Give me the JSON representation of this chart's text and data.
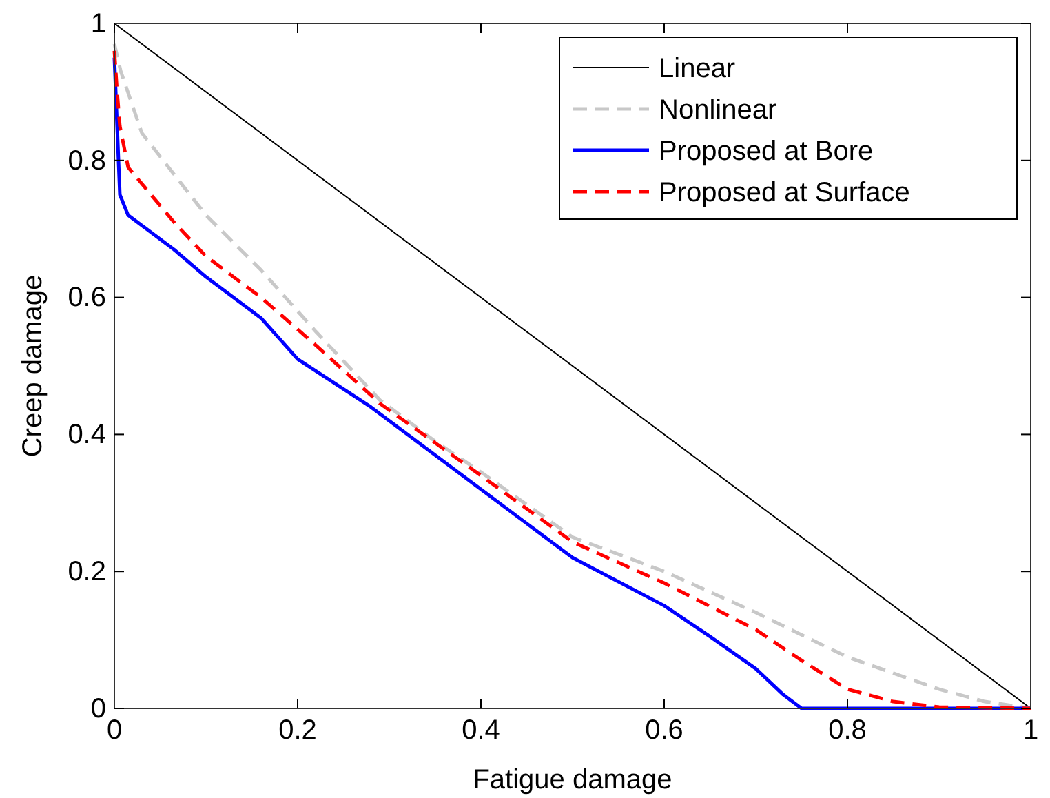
{
  "chart_data": {
    "type": "line",
    "xlabel": "Fatigue damage",
    "ylabel": "Creep damage",
    "xlim": [
      0,
      1
    ],
    "ylim": [
      0,
      1
    ],
    "xticks": [
      0,
      0.2,
      0.4,
      0.6,
      0.8,
      1
    ],
    "yticks": [
      0,
      0.2,
      0.4,
      0.6,
      0.8,
      1
    ],
    "grid": false,
    "legend": "top right",
    "marker": "none",
    "series": [
      {
        "name": "Linear",
        "color": "#000000",
        "line_style": "solid",
        "x": [
          0,
          1
        ],
        "values": [
          1,
          0
        ]
      },
      {
        "name": "Nonlinear",
        "color": "#c8c8c8",
        "line_style": "dashed",
        "x": [
          0,
          0.007,
          0.03,
          0.065,
          0.1,
          0.16,
          0.22,
          0.29,
          0.35,
          0.4,
          0.5,
          0.6,
          0.7,
          0.8,
          0.9,
          0.95,
          1
        ],
        "values": [
          0.97,
          0.93,
          0.84,
          0.78,
          0.72,
          0.64,
          0.55,
          0.45,
          0.39,
          0.345,
          0.25,
          0.2,
          0.14,
          0.075,
          0.028,
          0.01,
          0
        ]
      },
      {
        "name": "Proposed at Bore",
        "color": "#0000ff",
        "line_style": "solid",
        "x": [
          0,
          0.003,
          0.006,
          0.015,
          0.065,
          0.1,
          0.16,
          0.2,
          0.28,
          0.4,
          0.5,
          0.6,
          0.65,
          0.7,
          0.73,
          0.75,
          0.8,
          0.9,
          1
        ],
        "values": [
          0.95,
          0.85,
          0.75,
          0.72,
          0.67,
          0.63,
          0.57,
          0.51,
          0.44,
          0.32,
          0.22,
          0.15,
          0.105,
          0.058,
          0.02,
          0,
          0,
          0,
          0
        ]
      },
      {
        "name": "Proposed at Surface",
        "color": "#ff0000",
        "line_style": "dashed",
        "x": [
          0,
          0.003,
          0.006,
          0.015,
          0.065,
          0.1,
          0.16,
          0.22,
          0.29,
          0.4,
          0.5,
          0.6,
          0.7,
          0.75,
          0.8,
          0.85,
          0.9,
          1
        ],
        "values": [
          0.96,
          0.9,
          0.85,
          0.79,
          0.71,
          0.66,
          0.6,
          0.53,
          0.445,
          0.34,
          0.243,
          0.183,
          0.115,
          0.07,
          0.028,
          0.01,
          0.002,
          0
        ]
      }
    ]
  }
}
